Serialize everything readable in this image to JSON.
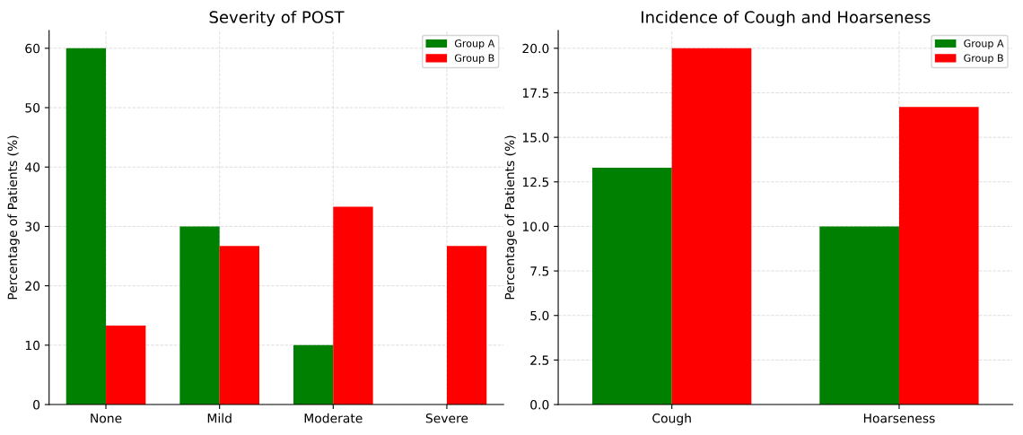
{
  "chart_data": [
    {
      "type": "bar",
      "title": "Severity of POST",
      "ylabel": "Percentage of Patients (%)",
      "categories": [
        "None",
        "Mild",
        "Moderate",
        "Severe"
      ],
      "series": [
        {
          "name": "Group A",
          "color": "#008000",
          "values": [
            60,
            30,
            10,
            0
          ]
        },
        {
          "name": "Group B",
          "color": "#ff0000",
          "values": [
            13.3,
            26.7,
            33.3,
            26.7
          ]
        }
      ],
      "ylim": [
        0,
        63
      ],
      "yticks": [
        0,
        10,
        20,
        30,
        40,
        50,
        60
      ],
      "grid": true,
      "legend": "top right"
    },
    {
      "type": "bar",
      "title": "Incidence of Cough and Hoarseness",
      "ylabel": "Percentage of Patients (%)",
      "categories": [
        "Cough",
        "Hoarseness"
      ],
      "series": [
        {
          "name": "Group A",
          "color": "#008000",
          "values": [
            13.3,
            10
          ]
        },
        {
          "name": "Group B",
          "color": "#ff0000",
          "values": [
            20,
            16.7
          ]
        }
      ],
      "ylim": [
        0,
        21
      ],
      "yticks": [
        {
          "value": 0,
          "label": "0.0"
        },
        {
          "value": 2.5,
          "label": "2.5"
        },
        {
          "value": 5,
          "label": "5.0"
        },
        {
          "value": 7.5,
          "label": "7.5"
        },
        {
          "value": 10,
          "label": "10.0"
        },
        {
          "value": 12.5,
          "label": "12.5"
        },
        {
          "value": 15,
          "label": "15.0"
        },
        {
          "value": 17.5,
          "label": "17.5"
        },
        {
          "value": 20,
          "label": "20.0"
        }
      ],
      "grid": true,
      "legend": "top right"
    }
  ]
}
